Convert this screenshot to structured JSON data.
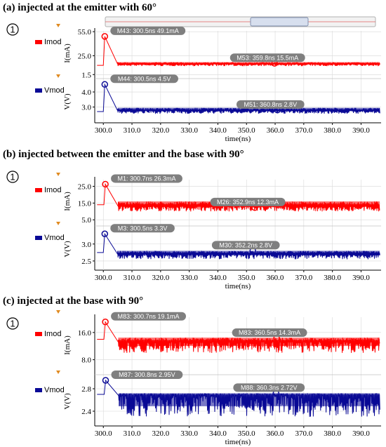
{
  "colors": {
    "imod": "#ff0000",
    "vmod": "#0a0a96",
    "marker": "#7f7f7f",
    "grid": "#d8d8d8"
  },
  "chart_data": [
    {
      "type": "line",
      "panel_label": "(a)",
      "title": "injected at the emitter with 60°",
      "circle_label": "1",
      "xlabel": "time(ns)",
      "xlim": [
        297,
        397
      ],
      "xticks": [
        "300.0",
        "310.0",
        "320.0",
        "330.0",
        "340.0",
        "350.0",
        "360.0",
        "370.0",
        "380.0",
        "390.0"
      ],
      "series": [
        {
          "name": "Imod",
          "ylabel": "I(mA)",
          "ylim": [
            0,
            56
          ],
          "yticks": [
            "55.0",
            "25.0",
            "1.5"
          ],
          "yticks_values": [
            55,
            25,
            1.5
          ],
          "peak_x": 300.5,
          "peak_y": 49.1,
          "base_y": 14.5,
          "pre_y": 13,
          "noise_lo": 12,
          "noise_hi": 17,
          "markers": [
            {
              "label": "M43: 300.5ns 49.1mA",
              "x": 300.5,
              "y": 49.1
            },
            {
              "label": "M53: 359.8ns 15.5mA",
              "x": 359.8,
              "y": 15.5
            }
          ]
        },
        {
          "name": "Vmod",
          "ylabel": "V(V)",
          "ylim": [
            2.0,
            4.7
          ],
          "yticks": [
            "4.0",
            "3.0"
          ],
          "yticks_values": [
            4.0,
            3.0
          ],
          "peak_x": 300.5,
          "peak_y": 4.5,
          "base_y": 2.75,
          "pre_y": 2.7,
          "noise_lo": 2.55,
          "noise_hi": 2.95,
          "markers": [
            {
              "label": "M44: 300.5ns 4.5V",
              "x": 300.5,
              "y": 4.5
            },
            {
              "label": "M51: 360.8ns 2.8V",
              "x": 360.8,
              "y": 2.8
            }
          ]
        }
      ]
    },
    {
      "type": "line",
      "panel_label": "(b)",
      "title": "injected between the emitter and the base with 90°",
      "circle_label": "1",
      "xlabel": "time(ns)",
      "xlim": [
        297,
        397
      ],
      "xticks": [
        "300.0",
        "310.0",
        "320.0",
        "330.0",
        "340.0",
        "350.0",
        "360.0",
        "370.0",
        "380.0",
        "390.0"
      ],
      "series": [
        {
          "name": "Imod",
          "ylabel": "I(mA)",
          "ylim": [
            3,
            29
          ],
          "yticks": [
            "25.0",
            "15.0",
            "5.0"
          ],
          "yticks_values": [
            25,
            15,
            5
          ],
          "peak_x": 300.7,
          "peak_y": 26.3,
          "base_y": 13.0,
          "pre_y": 14,
          "noise_lo": 10,
          "noise_hi": 16,
          "markers": [
            {
              "label": "M1: 300.7ns 26.3mA",
              "x": 300.7,
              "y": 26.3
            },
            {
              "label": "M26: 352.9ns 12.3mA",
              "x": 352.9,
              "y": 12.3
            }
          ]
        },
        {
          "name": "Vmod",
          "ylabel": "V(V)",
          "ylim": [
            2.25,
            3.45
          ],
          "yticks": [
            "3.0",
            "2.5"
          ],
          "yticks_values": [
            3.0,
            2.5
          ],
          "peak_x": 300.5,
          "peak_y": 3.3,
          "base_y": 2.7,
          "pre_y": 2.75,
          "noise_lo": 2.55,
          "noise_hi": 2.8,
          "markers": [
            {
              "label": "M3: 300.5ns 3.3V",
              "x": 300.5,
              "y": 3.3
            },
            {
              "label": "M30: 352.2ns 2.8V",
              "x": 352.2,
              "y": 2.8
            }
          ]
        }
      ]
    },
    {
      "type": "line",
      "panel_label": "(c)",
      "title": "injected at the base with 90°",
      "circle_label": "1",
      "xlabel": "time(ns)",
      "xlim": [
        297,
        397
      ],
      "xticks": [
        "300.0",
        "310.0",
        "320.0",
        "330.0",
        "340.0",
        "350.0",
        "360.0",
        "370.0",
        "380.0",
        "390.0"
      ],
      "series": [
        {
          "name": "Imod",
          "ylabel": "I(mA)",
          "ylim": [
            4,
            20.5
          ],
          "yticks": [
            "16.0",
            "8.0"
          ],
          "yticks_values": [
            16,
            8
          ],
          "peak_x": 300.7,
          "peak_y": 19.1,
          "base_y": 13.2,
          "pre_y": 14,
          "noise_lo": 10,
          "noise_hi": 14.5,
          "markers": [
            {
              "label": "M83: 300.7ns 19.1mA",
              "x": 300.7,
              "y": 19.1
            },
            {
              "label": "M83: 360.5ns 14.3mA",
              "x": 360.5,
              "y": 14.3
            }
          ]
        },
        {
          "name": "Vmod",
          "ylabel": "V(V)",
          "ylim": [
            2.15,
            3.0
          ],
          "yticks": [
            "2.8",
            "2.4"
          ],
          "yticks_values": [
            2.8,
            2.4
          ],
          "peak_x": 300.8,
          "peak_y": 2.95,
          "base_y": 2.68,
          "pre_y": 2.7,
          "noise_lo": 2.3,
          "noise_hi": 2.72,
          "markers": [
            {
              "label": "M87: 300.8ns 2.95V",
              "x": 300.8,
              "y": 2.95
            },
            {
              "label": "M88: 360.3ns 2.72V",
              "x": 360.3,
              "y": 2.72
            }
          ]
        }
      ]
    }
  ]
}
